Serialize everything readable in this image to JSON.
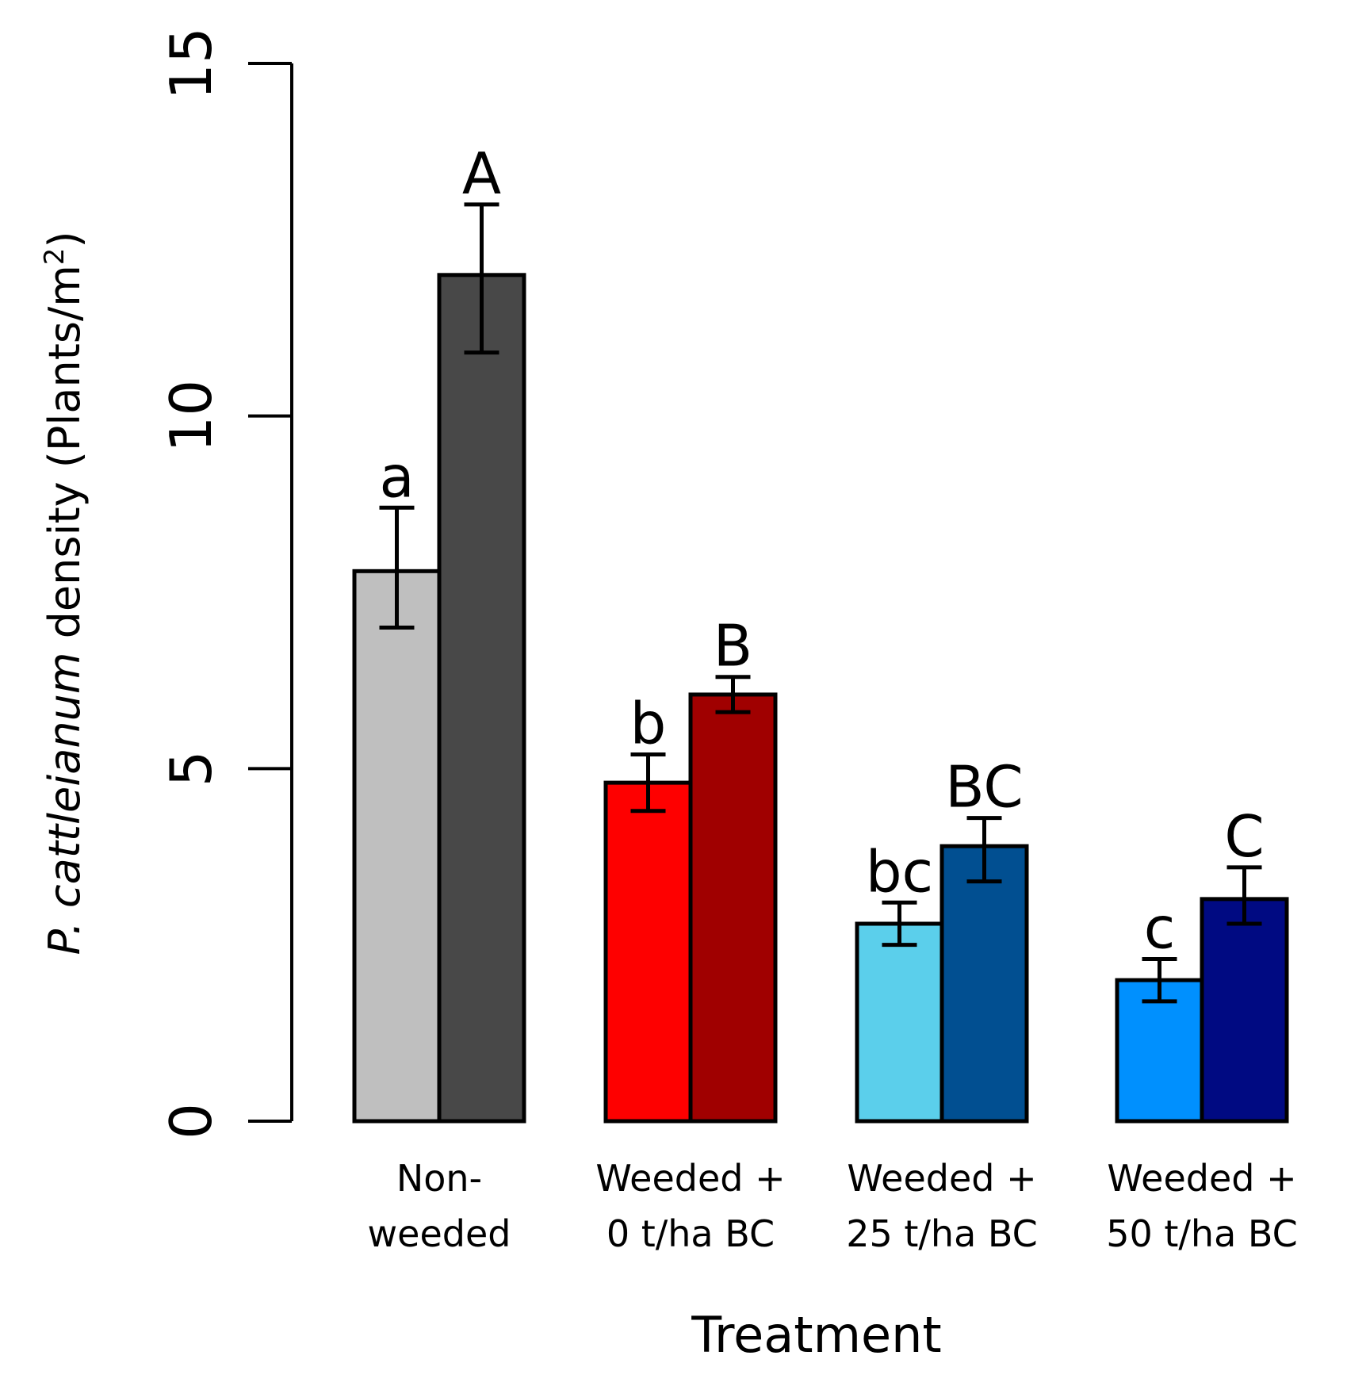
{
  "chart_data": {
    "type": "bar",
    "title": "",
    "xlabel": "Treatment",
    "ylabel": {
      "italic": "P. cattleianum",
      "rest": " density (Plants/m",
      "superscript": "2",
      "close": ")"
    },
    "ylim": [
      0,
      15
    ],
    "yticks": [
      "0",
      "5",
      "10",
      "15"
    ],
    "grid": false,
    "categories": [
      [
        "Non-",
        "weeded"
      ],
      [
        "Weeded +",
        "0 t/ha BC"
      ],
      [
        "Weeded +",
        "25 t/ha BC"
      ],
      [
        "Weeded +",
        "50 t/ha BC"
      ]
    ],
    "bars": [
      {
        "group": 0,
        "value": 7.8,
        "err_low": 7.0,
        "err_high": 8.7,
        "color": "#bfbfbf",
        "sig": "a"
      },
      {
        "group": 0,
        "value": 12.0,
        "err_low": 10.9,
        "err_high": 13.0,
        "color": "#484848",
        "sig": "A"
      },
      {
        "group": 1,
        "value": 4.8,
        "err_low": 4.4,
        "err_high": 5.2,
        "color": "#fe0000",
        "sig": "b"
      },
      {
        "group": 1,
        "value": 6.05,
        "err_low": 5.8,
        "err_high": 6.3,
        "color": "#a00000",
        "sig": "B"
      },
      {
        "group": 2,
        "value": 2.8,
        "err_low": 2.5,
        "err_high": 3.1,
        "color": "#5bcfeb",
        "sig": "bc"
      },
      {
        "group": 2,
        "value": 3.9,
        "err_low": 3.4,
        "err_high": 4.3,
        "color": "#014f91",
        "sig": "BC"
      },
      {
        "group": 3,
        "value": 2.0,
        "err_low": 1.7,
        "err_high": 2.3,
        "color": "#0090fe",
        "sig": "c"
      },
      {
        "group": 3,
        "value": 3.15,
        "err_low": 2.8,
        "err_high": 3.6,
        "color": "#000a82",
        "sig": "C"
      }
    ]
  }
}
